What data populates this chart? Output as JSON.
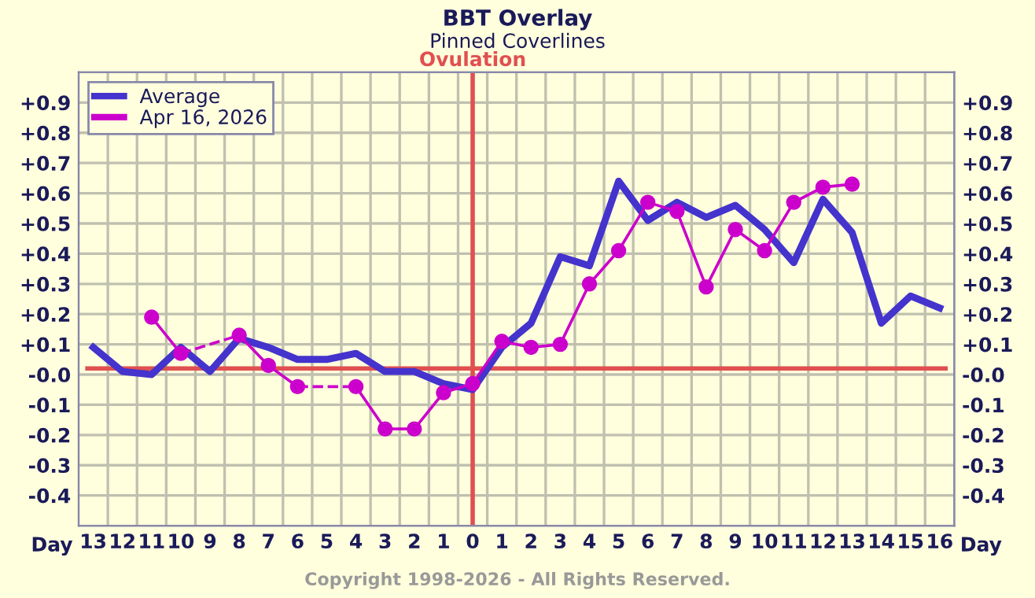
{
  "chart_data": {
    "type": "line",
    "title": "BBT Overlay",
    "subtitle": "Pinned Coverlines",
    "xlabel": "Day",
    "annotations": [
      "Copyright 1998-2026 - All Rights Reserved."
    ],
    "categories": [
      "13",
      "12",
      "11",
      "10",
      "9",
      "8",
      "7",
      "6",
      "5",
      "4",
      "3",
      "2",
      "1",
      "0",
      "1",
      "2",
      "3",
      "4",
      "5",
      "6",
      "7",
      "8",
      "9",
      "10",
      "11",
      "12",
      "13",
      "14",
      "15",
      "16"
    ],
    "series": [
      {
        "name": "Average",
        "color": "#4433cc",
        "marker": "none",
        "values": [
          0.09,
          0.01,
          0.0,
          0.09,
          0.01,
          0.12,
          0.09,
          0.05,
          0.05,
          0.07,
          0.01,
          0.01,
          -0.03,
          -0.05,
          0.09,
          0.17,
          0.39,
          0.36,
          0.64,
          0.51,
          0.57,
          0.52,
          0.56,
          0.48,
          0.37,
          0.58,
          0.47,
          0.17,
          0.26,
          0.22
        ]
      },
      {
        "name": "Apr 16, 2026",
        "color": "#cc00cc",
        "marker": "circle",
        "values": [
          null,
          null,
          0.19,
          0.07,
          null,
          0.13,
          0.03,
          -0.04,
          null,
          -0.04,
          -0.18,
          -0.18,
          -0.06,
          -0.03,
          0.11,
          0.09,
          0.1,
          0.3,
          0.41,
          0.57,
          0.54,
          0.29,
          0.48,
          0.41,
          0.57,
          0.62,
          0.63,
          null,
          null,
          null
        ]
      }
    ],
    "ylim": [
      -0.5,
      1.0
    ],
    "yticks": [
      {
        "value": -0.4,
        "label": "-0.4"
      },
      {
        "value": -0.3,
        "label": "-0.3"
      },
      {
        "value": -0.2,
        "label": "-0.2"
      },
      {
        "value": -0.1,
        "label": "-0.1"
      },
      {
        "value": 0.0,
        "label": "-0.0"
      },
      {
        "value": 0.1,
        "label": "+0.1"
      },
      {
        "value": 0.2,
        "label": "+0.2"
      },
      {
        "value": 0.3,
        "label": "+0.3"
      },
      {
        "value": 0.4,
        "label": "+0.4"
      },
      {
        "value": 0.5,
        "label": "+0.5"
      },
      {
        "value": 0.6,
        "label": "+0.6"
      },
      {
        "value": 0.7,
        "label": "+0.7"
      },
      {
        "value": 0.8,
        "label": "+0.8"
      },
      {
        "value": 0.9,
        "label": "+0.9"
      }
    ],
    "y2lim": [
      -0.5,
      1.0
    ],
    "y2ticks": [
      {
        "value": -0.4,
        "label": "-0.4"
      },
      {
        "value": -0.3,
        "label": "-0.3"
      },
      {
        "value": -0.2,
        "label": "-0.2"
      },
      {
        "value": -0.1,
        "label": "-0.1"
      },
      {
        "value": 0.0,
        "label": "-0.0"
      },
      {
        "value": 0.1,
        "label": "+0.1"
      },
      {
        "value": 0.2,
        "label": "+0.2"
      },
      {
        "value": 0.3,
        "label": "+0.3"
      },
      {
        "value": 0.4,
        "label": "+0.4"
      },
      {
        "value": 0.5,
        "label": "+0.5"
      },
      {
        "value": 0.6,
        "label": "+0.6"
      },
      {
        "value": 0.7,
        "label": "+0.7"
      },
      {
        "value": 0.8,
        "label": "+0.8"
      },
      {
        "value": 0.9,
        "label": "+0.9"
      }
    ],
    "ref_lines": [
      {
        "axis": "x",
        "value": "0",
        "label": "Ovulation",
        "color": "#e05050"
      },
      {
        "axis": "y",
        "value": 0.02,
        "color": "#e05050"
      }
    ],
    "grid": true,
    "legend": "top left"
  }
}
